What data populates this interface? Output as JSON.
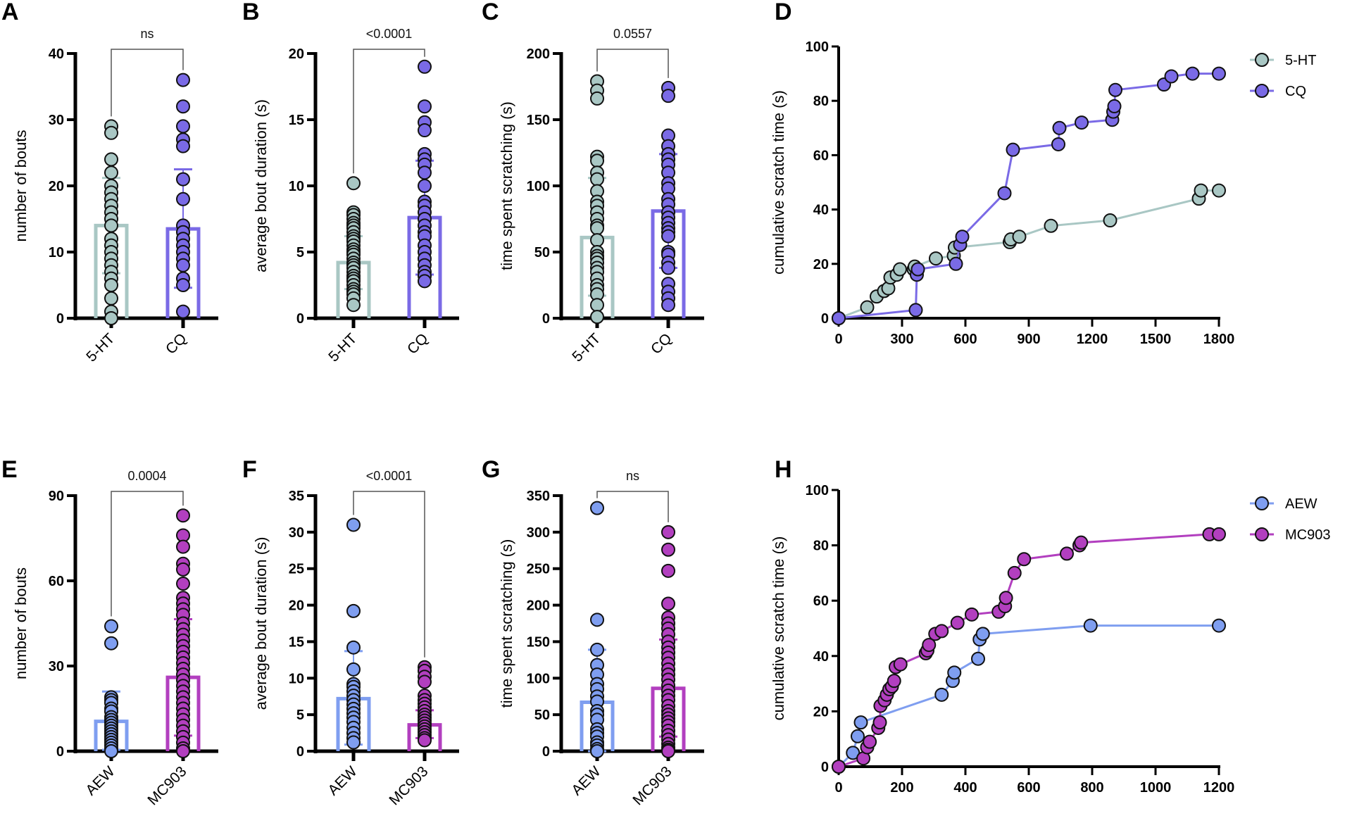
{
  "colors": {
    "5-HT": "#a9c7c4",
    "CQ": "#7a6ae6",
    "AEW": "#7f9ef0",
    "MC903": "#b23fbf",
    "axis": "#000000",
    "bracket": "#555555"
  },
  "chart_data": [
    {
      "panel": "A",
      "type": "bar",
      "title": "",
      "xlabel": "",
      "ylabel": "number of bouts",
      "ylim": [
        0,
        40
      ],
      "yticks": [
        0,
        10,
        20,
        30,
        40
      ],
      "categories": [
        "5-HT",
        "CQ"
      ],
      "significance": "ns",
      "series": [
        {
          "name": "5-HT",
          "mean": 14,
          "sd_low": 6.8,
          "sd_high": 21.2,
          "points": [
            29,
            28,
            24,
            22,
            20,
            19,
            18,
            17,
            16,
            15,
            14,
            12,
            11,
            10,
            9,
            8,
            7,
            6,
            5,
            3,
            1,
            0
          ]
        },
        {
          "name": "CQ",
          "mean": 13.5,
          "sd_low": 4.6,
          "sd_high": 22.5,
          "points": [
            36,
            32,
            29,
            27,
            26,
            21,
            18,
            14,
            13,
            12,
            11,
            10,
            9,
            8,
            6,
            5,
            1
          ]
        }
      ]
    },
    {
      "panel": "B",
      "type": "bar",
      "title": "",
      "xlabel": "",
      "ylabel": "average bout duration (s)",
      "ylim": [
        0,
        20
      ],
      "yticks": [
        0,
        5,
        10,
        15,
        20
      ],
      "categories": [
        "5-HT",
        "CQ"
      ],
      "significance": "<0.0001",
      "series": [
        {
          "name": "5-HT",
          "mean": 4.2,
          "sd_low": 2.2,
          "sd_high": 6.2,
          "points": [
            10.2,
            8,
            7.8,
            7.5,
            7.2,
            7,
            6.8,
            6.5,
            6.2,
            6,
            5.8,
            5.5,
            5.2,
            5,
            4.8,
            4.5,
            4.2,
            4,
            3.8,
            3.5,
            3.2,
            3,
            2.8,
            2.5,
            2.2,
            2,
            1.8,
            1.5,
            1
          ]
        },
        {
          "name": "CQ",
          "mean": 7.6,
          "sd_low": 3.3,
          "sd_high": 11.9,
          "points": [
            19,
            16,
            14.8,
            14.2,
            12.4,
            12,
            11.6,
            11,
            10,
            8.8,
            8.5,
            8,
            7.5,
            7,
            6.5,
            6.2,
            5.5,
            5,
            4.5,
            4,
            3.5,
            3.2,
            2.8
          ]
        }
      ]
    },
    {
      "panel": "C",
      "type": "bar",
      "title": "",
      "xlabel": "",
      "ylabel": "time spent scratching (s)",
      "ylim": [
        0,
        200
      ],
      "yticks": [
        0,
        50,
        100,
        150,
        200
      ],
      "categories": [
        "5-HT",
        "CQ"
      ],
      "significance": "0.0557",
      "series": [
        {
          "name": "5-HT",
          "mean": 61,
          "sd_low": 17,
          "sd_high": 106,
          "points": [
            179,
            172,
            166,
            122,
            119,
            110,
            105,
            96,
            88,
            85,
            80,
            75,
            70,
            68,
            59,
            50,
            47,
            45,
            42,
            38,
            35,
            30,
            25,
            22,
            18,
            10,
            1
          ]
        },
        {
          "name": "CQ",
          "mean": 81,
          "sd_low": 38,
          "sd_high": 124,
          "points": [
            174,
            168,
            138,
            130,
            124,
            120,
            116,
            110,
            102,
            98,
            90,
            86,
            80,
            76,
            72,
            68,
            65,
            62,
            50,
            48,
            42,
            38,
            26,
            20,
            15,
            10
          ]
        }
      ]
    },
    {
      "panel": "D",
      "type": "line",
      "title": "",
      "xlabel": "",
      "ylabel": "cumulative scratch time (s)",
      "xlim": [
        0,
        1800
      ],
      "ylim": [
        0,
        100
      ],
      "xticks": [
        0,
        300,
        600,
        900,
        1200,
        1500,
        1800
      ],
      "yticks": [
        0,
        20,
        40,
        60,
        80,
        100
      ],
      "legend": "top-right",
      "series": [
        {
          "name": "5-HT",
          "x": [
            0,
            135,
            180,
            215,
            235,
            245,
            275,
            290,
            355,
            360,
            460,
            545,
            550,
            810,
            815,
            855,
            1005,
            1285,
            1705,
            1715,
            1800
          ],
          "y": [
            0,
            4,
            8,
            10,
            11,
            15,
            16,
            18,
            18,
            19,
            22,
            23,
            26,
            28,
            29,
            30,
            34,
            36,
            44,
            47,
            47
          ]
        },
        {
          "name": "CQ",
          "x": [
            0,
            365,
            370,
            375,
            555,
            575,
            585,
            785,
            825,
            1040,
            1045,
            1150,
            1295,
            1300,
            1305,
            1310,
            1540,
            1575,
            1675,
            1800
          ],
          "y": [
            0,
            3,
            16,
            18,
            20,
            27,
            30,
            46,
            62,
            64,
            70,
            72,
            73,
            76,
            78,
            84,
            86,
            89,
            90,
            90
          ]
        }
      ]
    },
    {
      "panel": "E",
      "type": "bar",
      "title": "",
      "xlabel": "",
      "ylabel": "number of bouts",
      "ylim": [
        0,
        90
      ],
      "yticks": [
        0,
        30,
        60,
        90
      ],
      "categories": [
        "AEW",
        "MC903"
      ],
      "significance": "0.0004",
      "series": [
        {
          "name": "AEW",
          "mean": 10.5,
          "sd_low": 0.5,
          "sd_high": 21,
          "points": [
            44,
            38,
            19,
            18,
            17,
            15,
            14,
            12,
            11,
            10,
            9,
            8,
            7,
            6,
            5,
            4,
            3,
            2,
            1,
            0
          ]
        },
        {
          "name": "MC903",
          "mean": 26,
          "sd_low": 5.5,
          "sd_high": 46.5,
          "points": [
            83,
            76,
            72,
            66,
            64,
            59,
            54,
            52,
            50,
            48,
            45,
            43,
            41,
            39,
            37,
            35,
            33,
            31,
            29,
            27,
            25,
            23,
            21,
            19,
            17,
            15,
            13,
            11,
            9,
            7,
            5,
            3,
            1,
            0
          ]
        }
      ]
    },
    {
      "panel": "F",
      "type": "bar",
      "title": "",
      "xlabel": "",
      "ylabel": "average bout duration (s)",
      "ylim": [
        0,
        35
      ],
      "yticks": [
        0,
        5,
        10,
        15,
        20,
        25,
        30,
        35
      ],
      "categories": [
        "AEW",
        "MC903"
      ],
      "significance": "<0.0001",
      "series": [
        {
          "name": "AEW",
          "mean": 7.2,
          "sd_low": 0.9,
          "sd_high": 13.7,
          "points": [
            31,
            19.2,
            14.2,
            11.2,
            9.2,
            8.8,
            8.2,
            7.6,
            7,
            6.4,
            5.8,
            5.2,
            4.6,
            4,
            3.2,
            2.5,
            1.8,
            1.2
          ]
        },
        {
          "name": "MC903",
          "mean": 3.6,
          "sd_low": 1.8,
          "sd_high": 5.6,
          "points": [
            11.5,
            11,
            10.2,
            9.5,
            7.6,
            7,
            6.5,
            6,
            5.5,
            5,
            4.6,
            4.2,
            3.8,
            3.4,
            3,
            2.6,
            2.2,
            1.8,
            1.5
          ]
        }
      ]
    },
    {
      "panel": "G",
      "type": "bar",
      "title": "",
      "xlabel": "",
      "ylabel": "time spent scratching (s)",
      "ylim": [
        0,
        350
      ],
      "yticks": [
        0,
        50,
        100,
        150,
        200,
        250,
        300,
        350
      ],
      "categories": [
        "AEW",
        "MC903"
      ],
      "significance": "ns",
      "series": [
        {
          "name": "AEW",
          "mean": 67,
          "sd_low": 0,
          "sd_high": 139,
          "points": [
            333,
            180,
            139,
            118,
            105,
            92,
            85,
            75,
            68,
            55,
            50,
            43,
            30,
            25,
            20,
            12,
            8,
            3,
            0
          ]
        },
        {
          "name": "MC903",
          "mean": 86,
          "sd_low": 20,
          "sd_high": 153,
          "points": [
            300,
            276,
            247,
            202,
            183,
            175,
            168,
            160,
            150,
            142,
            135,
            128,
            120,
            112,
            105,
            98,
            90,
            83,
            76,
            70,
            62,
            55,
            50,
            45,
            40,
            35,
            28,
            22,
            16,
            10,
            5,
            2,
            0
          ]
        }
      ]
    },
    {
      "panel": "H",
      "type": "line",
      "title": "",
      "xlabel": "",
      "ylabel": "cumulative scratch time (s)",
      "xlim": [
        0,
        1200
      ],
      "ylim": [
        0,
        100
      ],
      "xticks": [
        0,
        200,
        400,
        600,
        800,
        1000,
        1200
      ],
      "yticks": [
        0,
        20,
        40,
        60,
        80,
        100
      ],
      "legend": "top-right",
      "series": [
        {
          "name": "AEW",
          "x": [
            0,
            45,
            60,
            70,
            325,
            360,
            365,
            440,
            445,
            455,
            795,
            1200
          ],
          "y": [
            0,
            5,
            11,
            16,
            26,
            31,
            34,
            39,
            46,
            48,
            51,
            51
          ]
        },
        {
          "name": "MC903",
          "x": [
            0,
            78,
            90,
            98,
            125,
            130,
            132,
            145,
            152,
            160,
            168,
            175,
            180,
            195,
            275,
            280,
            285,
            305,
            325,
            375,
            420,
            505,
            525,
            528,
            555,
            585,
            720,
            760,
            765,
            1170,
            1200
          ],
          "y": [
            0,
            3,
            7,
            9,
            14,
            16,
            22,
            24,
            26,
            28,
            29,
            31,
            36,
            37,
            41,
            42,
            44,
            48,
            49,
            52,
            55,
            56,
            58,
            61,
            70,
            75,
            77,
            80,
            81,
            84,
            84
          ]
        }
      ]
    }
  ]
}
